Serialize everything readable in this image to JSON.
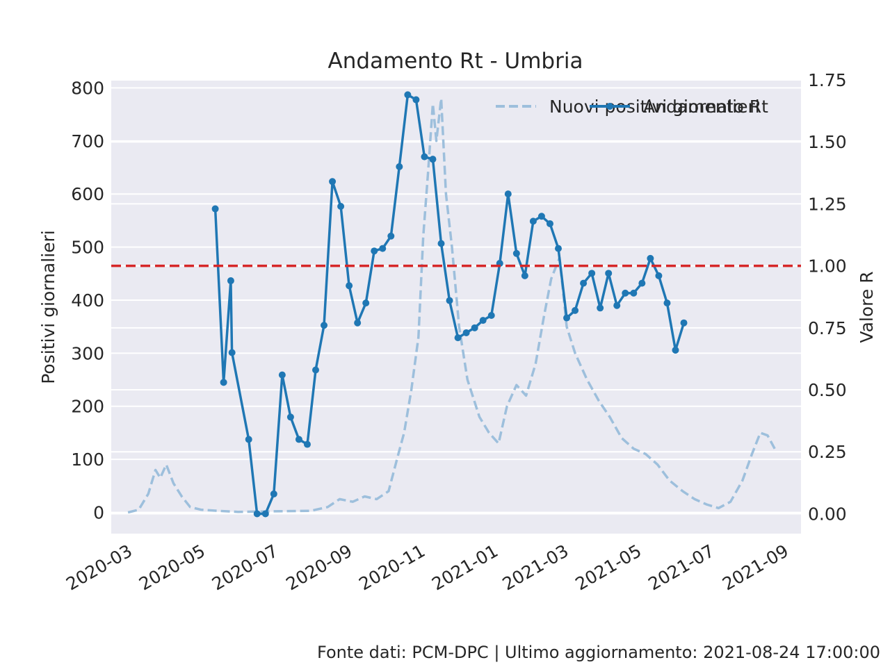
{
  "chart_data": {
    "type": "line",
    "title": "Andamento Rt - Umbria",
    "ylabel_left": "Positivi giornalieri",
    "ylabel_right": "Valore R",
    "ylim_left": [
      -40,
      815
    ],
    "ylim_right": [
      -0.08,
      1.75
    ],
    "yticks_left": [
      0,
      100,
      200,
      300,
      400,
      500,
      600,
      700,
      800
    ],
    "yticks_right": [
      0.0,
      0.25,
      0.5,
      0.75,
      1.0,
      1.25,
      1.5,
      1.75
    ],
    "xticks": [
      "2020-03",
      "2020-05",
      "2020-07",
      "2020-09",
      "2020-11",
      "2021-01",
      "2021-03",
      "2021-05",
      "2021-07",
      "2021-09"
    ],
    "xlim": [
      "2020-02-16",
      "2021-09-15"
    ],
    "grid": true,
    "legend_position": "top-right",
    "reference_line": {
      "axis": "right",
      "y": 1.0,
      "color": "#d62728",
      "style": "dashed"
    },
    "series": [
      {
        "name": "Nuovi positivi giornalieri",
        "axis": "left",
        "style": "dashed",
        "color": "#9dbfdc",
        "points": [
          [
            "2020-03-01",
            0
          ],
          [
            "2020-03-10",
            5
          ],
          [
            "2020-03-18",
            35
          ],
          [
            "2020-03-24",
            80
          ],
          [
            "2020-03-28",
            65
          ],
          [
            "2020-04-02",
            90
          ],
          [
            "2020-04-08",
            55
          ],
          [
            "2020-04-15",
            30
          ],
          [
            "2020-04-22",
            10
          ],
          [
            "2020-05-01",
            5
          ],
          [
            "2020-05-15",
            3
          ],
          [
            "2020-06-01",
            1
          ],
          [
            "2020-07-01",
            2
          ],
          [
            "2020-08-01",
            3
          ],
          [
            "2020-08-15",
            10
          ],
          [
            "2020-08-25",
            25
          ],
          [
            "2020-09-05",
            20
          ],
          [
            "2020-09-15",
            30
          ],
          [
            "2020-09-25",
            25
          ],
          [
            "2020-10-05",
            40
          ],
          [
            "2020-10-12",
            100
          ],
          [
            "2020-10-18",
            150
          ],
          [
            "2020-10-24",
            230
          ],
          [
            "2020-10-30",
            330
          ],
          [
            "2020-11-03",
            520
          ],
          [
            "2020-11-07",
            640
          ],
          [
            "2020-11-11",
            770
          ],
          [
            "2020-11-14",
            700
          ],
          [
            "2020-11-18",
            780
          ],
          [
            "2020-11-22",
            600
          ],
          [
            "2020-11-27",
            500
          ],
          [
            "2020-12-03",
            350
          ],
          [
            "2020-12-10",
            250
          ],
          [
            "2020-12-20",
            180
          ],
          [
            "2020-12-28",
            150
          ],
          [
            "2021-01-05",
            130
          ],
          [
            "2021-01-12",
            200
          ],
          [
            "2021-01-20",
            240
          ],
          [
            "2021-01-28",
            220
          ],
          [
            "2021-02-05",
            280
          ],
          [
            "2021-02-12",
            370
          ],
          [
            "2021-02-18",
            440
          ],
          [
            "2021-02-25",
            480
          ],
          [
            "2021-03-03",
            350
          ],
          [
            "2021-03-10",
            300
          ],
          [
            "2021-03-20",
            250
          ],
          [
            "2021-03-30",
            210
          ],
          [
            "2021-04-08",
            180
          ],
          [
            "2021-04-18",
            140
          ],
          [
            "2021-04-28",
            120
          ],
          [
            "2021-05-08",
            110
          ],
          [
            "2021-05-18",
            90
          ],
          [
            "2021-05-28",
            60
          ],
          [
            "2021-06-08",
            40
          ],
          [
            "2021-06-18",
            25
          ],
          [
            "2021-06-28",
            15
          ],
          [
            "2021-07-08",
            8
          ],
          [
            "2021-07-18",
            20
          ],
          [
            "2021-07-28",
            60
          ],
          [
            "2021-08-05",
            110
          ],
          [
            "2021-08-12",
            150
          ],
          [
            "2021-08-18",
            145
          ],
          [
            "2021-08-24",
            120
          ]
        ]
      },
      {
        "name": "Andamento Rt",
        "axis": "right",
        "style": "solid-markers",
        "color": "#1f77b4",
        "points": [
          [
            "2020-05-13",
            1.23
          ],
          [
            "2020-05-20",
            0.53
          ],
          [
            "2020-05-26",
            0.94
          ],
          [
            "2020-05-27",
            0.65
          ],
          [
            "2020-06-10",
            0.3
          ],
          [
            "2020-06-17",
            0.0
          ],
          [
            "2020-06-24",
            0.0
          ],
          [
            "2020-07-01",
            0.08
          ],
          [
            "2020-07-08",
            0.56
          ],
          [
            "2020-07-15",
            0.39
          ],
          [
            "2020-07-22",
            0.3
          ],
          [
            "2020-07-29",
            0.28
          ],
          [
            "2020-08-05",
            0.58
          ],
          [
            "2020-08-12",
            0.76
          ],
          [
            "2020-08-19",
            1.34
          ],
          [
            "2020-08-26",
            1.24
          ],
          [
            "2020-09-02",
            0.92
          ],
          [
            "2020-09-09",
            0.77
          ],
          [
            "2020-09-16",
            0.85
          ],
          [
            "2020-09-23",
            1.06
          ],
          [
            "2020-09-30",
            1.07
          ],
          [
            "2020-10-07",
            1.12
          ],
          [
            "2020-10-14",
            1.4
          ],
          [
            "2020-10-21",
            1.69
          ],
          [
            "2020-10-28",
            1.67
          ],
          [
            "2020-11-04",
            1.44
          ],
          [
            "2020-11-11",
            1.43
          ],
          [
            "2020-11-18",
            1.09
          ],
          [
            "2020-11-25",
            0.86
          ],
          [
            "2020-12-02",
            0.71
          ],
          [
            "2020-12-09",
            0.73
          ],
          [
            "2020-12-16",
            0.75
          ],
          [
            "2020-12-23",
            0.78
          ],
          [
            "2020-12-30",
            0.8
          ],
          [
            "2021-01-06",
            1.01
          ],
          [
            "2021-01-13",
            1.29
          ],
          [
            "2021-01-20",
            1.05
          ],
          [
            "2021-01-27",
            0.96
          ],
          [
            "2021-02-03",
            1.18
          ],
          [
            "2021-02-10",
            1.2
          ],
          [
            "2021-02-17",
            1.17
          ],
          [
            "2021-02-24",
            1.07
          ],
          [
            "2021-03-03",
            0.79
          ],
          [
            "2021-03-10",
            0.82
          ],
          [
            "2021-03-17",
            0.93
          ],
          [
            "2021-03-24",
            0.97
          ],
          [
            "2021-03-31",
            0.83
          ],
          [
            "2021-04-07",
            0.97
          ],
          [
            "2021-04-14",
            0.84
          ],
          [
            "2021-04-21",
            0.89
          ],
          [
            "2021-04-28",
            0.89
          ],
          [
            "2021-05-05",
            0.93
          ],
          [
            "2021-05-12",
            1.03
          ],
          [
            "2021-05-19",
            0.96
          ],
          [
            "2021-05-26",
            0.85
          ],
          [
            "2021-06-02",
            0.66
          ],
          [
            "2021-06-09",
            0.77
          ]
        ]
      }
    ]
  },
  "footer": "Fonte dati: PCM-DPC | Ultimo aggiornamento: 2021-08-24 17:00:00"
}
